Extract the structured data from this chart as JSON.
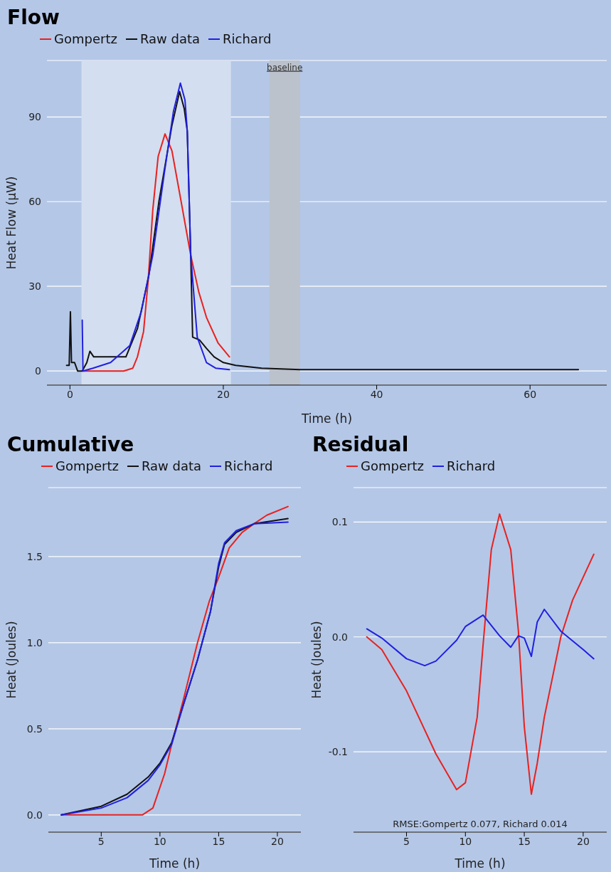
{
  "chart_data": [
    {
      "type": "line",
      "title": "Flow",
      "xlabel": "Time (h)",
      "ylabel": "Heat Flow (µW)",
      "xlim": [
        -3,
        70
      ],
      "xticks": [
        0,
        20,
        40,
        60
      ],
      "ylim": [
        -5,
        110
      ],
      "yticks": [
        0,
        30,
        60,
        90
      ],
      "grid": "y",
      "legend": "top left",
      "bands": [
        {
          "axis": "x",
          "from": 1.5,
          "to": 21,
          "color": "#d3def0"
        },
        {
          "axis": "x",
          "from": 26,
          "to": 30,
          "label": "baseline",
          "color": "#bcc2cc"
        }
      ],
      "series": [
        {
          "name": "Gompertz",
          "color": "#e8211f",
          "x": [
            1.7,
            4,
            7,
            8.2,
            8.8,
            9.6,
            10.2,
            10.8,
            11.5,
            12.4,
            13.3,
            14.5,
            15.75,
            16.8,
            17.8,
            19.3,
            20.8
          ],
          "values": [
            0,
            0,
            0,
            1,
            5,
            14,
            32,
            57,
            76,
            84,
            78,
            60,
            41,
            28,
            19,
            10,
            5
          ]
        },
        {
          "name": "Raw data",
          "color": "#111111",
          "x": [
            -0.44,
            -0.1,
            0.06,
            0.2,
            0.6,
            1.0,
            1.6,
            2.2,
            2.6,
            3.1,
            5,
            7.3,
            8.8,
            10.3,
            11.6,
            13.3,
            14.3,
            14.9,
            15.3,
            15.75,
            16.0,
            16.9,
            17.8,
            18.8,
            20,
            21.6,
            25,
            30,
            40,
            50,
            60,
            66.3
          ],
          "values": [
            2,
            2,
            21,
            3,
            3,
            0,
            0,
            3,
            7,
            5,
            5,
            5,
            15,
            34,
            60,
            87,
            99,
            93,
            85,
            41,
            12,
            11,
            8,
            5,
            3,
            2,
            1,
            0.5,
            0.5,
            0.5,
            0.5,
            0.5
          ]
        },
        {
          "name": "Richard",
          "color": "#2020e0",
          "x": [
            1.6,
            1.7,
            3,
            5.3,
            7.8,
            9.3,
            10.8,
            12.3,
            13.5,
            14.4,
            15.0,
            15.3,
            15.75,
            16.6,
            17.8,
            19,
            20.8
          ],
          "values": [
            18,
            0,
            1,
            3,
            9,
            21,
            41,
            70,
            92,
            102,
            96,
            85,
            41,
            12,
            3,
            1,
            0.5
          ]
        }
      ]
    },
    {
      "type": "line",
      "title": "Cumulative",
      "xlabel": "Time (h)",
      "ylabel": "Heat (Joules)",
      "xlim": [
        0.5,
        22
      ],
      "xticks": [
        5,
        10,
        15,
        20
      ],
      "ylim": [
        -0.1,
        1.9
      ],
      "yticks": [
        {
          "value": 0,
          "label": "0.0"
        },
        {
          "value": 0.5,
          "label": "0.5"
        },
        {
          "value": 1,
          "label": "1.0"
        },
        {
          "value": 1.5,
          "label": "1.5"
        }
      ],
      "grid": "y",
      "legend": "top left",
      "series": [
        {
          "name": "Gompertz",
          "color": "#e8211f",
          "x": [
            1.6,
            5,
            8.5,
            9.4,
            10.4,
            11,
            12,
            13.2,
            14.2,
            15,
            15.9,
            17,
            18,
            19.1,
            20.9
          ],
          "values": [
            0,
            0,
            0,
            0.04,
            0.24,
            0.41,
            0.67,
            1.0,
            1.24,
            1.38,
            1.55,
            1.64,
            1.69,
            1.74,
            1.79
          ]
        },
        {
          "name": "Raw data",
          "color": "#111111",
          "x": [
            1.6,
            5,
            7.2,
            9,
            10,
            11,
            12,
            13.2,
            14.3,
            15,
            15.5,
            16.5,
            18,
            20.9
          ],
          "values": [
            0,
            0.05,
            0.12,
            0.22,
            0.3,
            0.42,
            0.64,
            0.9,
            1.18,
            1.44,
            1.57,
            1.64,
            1.69,
            1.72
          ]
        },
        {
          "name": "Richard",
          "color": "#2020e0",
          "x": [
            1.6,
            5,
            7.2,
            9,
            10,
            11,
            12,
            13.2,
            14.3,
            15,
            15.5,
            16.5,
            18,
            20.9
          ],
          "values": [
            0,
            0.04,
            0.1,
            0.2,
            0.29,
            0.41,
            0.64,
            0.9,
            1.18,
            1.46,
            1.58,
            1.65,
            1.69,
            1.7
          ]
        }
      ]
    },
    {
      "type": "line",
      "title": "Residual",
      "xlabel": "Time (h)",
      "ylabel": "Heat (Joules)",
      "xlim": [
        0.5,
        22
      ],
      "xticks": [
        5,
        10,
        15,
        20
      ],
      "ylim": [
        -0.17,
        0.13
      ],
      "yticks": [
        0.1,
        {
          "value": 0,
          "label": "0.0"
        },
        -0.1
      ],
      "grid": "y",
      "legend": "top left",
      "annotations": [
        "RMSE:Gompertz 0.077, Richard 0.014"
      ],
      "series": [
        {
          "name": "Gompertz",
          "color": "#e8211f",
          "x": [
            1.63,
            2.9,
            5,
            7.5,
            9.25,
            10,
            11,
            11.5,
            12.2,
            12.9,
            13.85,
            14.5,
            15,
            15.6,
            16.1,
            16.7,
            18.1,
            19.1,
            20,
            20.9
          ],
          "values": [
            0,
            -0.011,
            -0.047,
            -0.102,
            -0.133,
            -0.127,
            -0.07,
            -0.007,
            0.076,
            0.107,
            0.076,
            0.005,
            -0.078,
            -0.137,
            -0.11,
            -0.07,
            0,
            0.032,
            0.052,
            0.072
          ]
        },
        {
          "name": "Richard",
          "color": "#2020e0",
          "x": [
            1.63,
            2.9,
            5,
            6.55,
            7.5,
            9.25,
            10,
            11.5,
            12.9,
            13.85,
            14.5,
            15,
            15.6,
            16.1,
            16.7,
            18.1,
            20,
            20.9
          ],
          "values": [
            0.007,
            -0.001,
            -0.019,
            -0.025,
            -0.021,
            -0.003,
            0.009,
            0.019,
            0.001,
            -0.009,
            0.001,
            -0.001,
            -0.017,
            0.013,
            0.024,
            0.005,
            -0.011,
            -0.019
          ]
        }
      ]
    }
  ]
}
